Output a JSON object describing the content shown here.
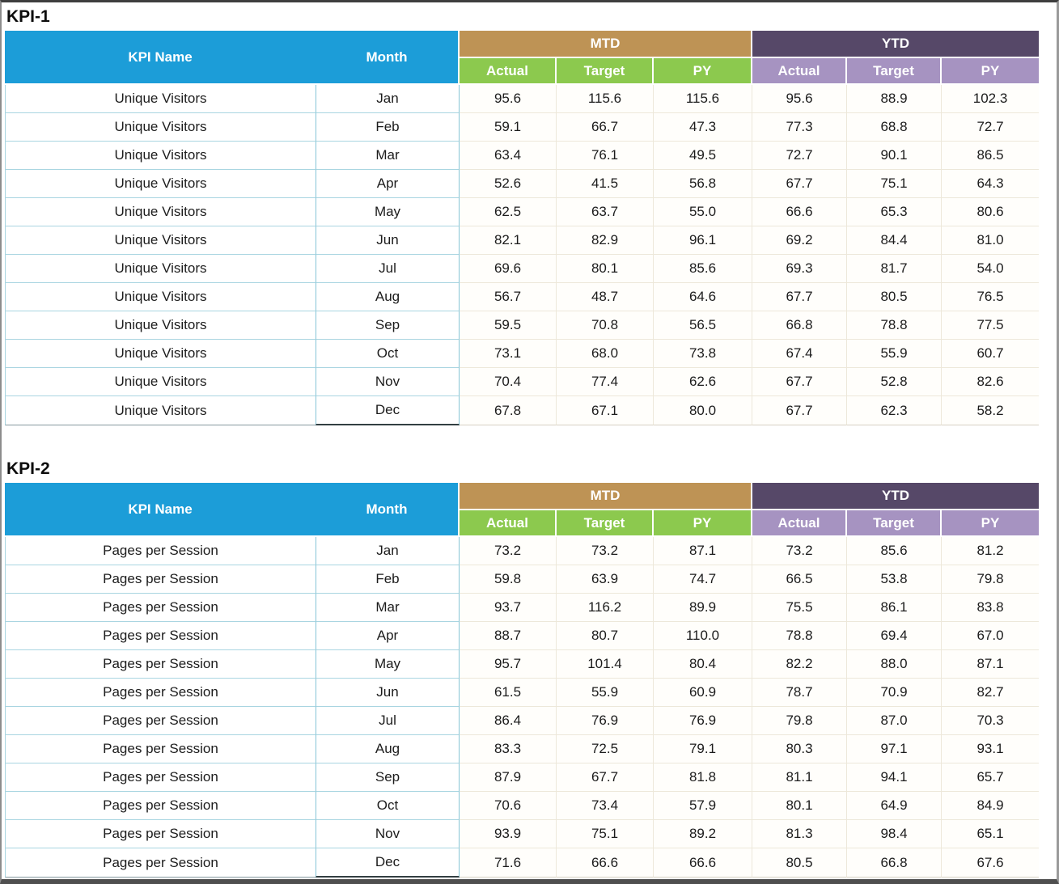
{
  "colors": {
    "header_blue": "#1C9DD8",
    "mtd_group_gold": "#BE9355",
    "mtd_subheader_green": "#8CC94E",
    "ytd_group_purple": "#564868",
    "ytd_subheader_lavender": "#A693C1",
    "name_month_gridline_teal": "#86C5D7",
    "numeric_gridline_cream": "#EDE8DA",
    "header_text": "#FFFFFF",
    "body_text": "#1C1C1C"
  },
  "tables": [
    {
      "title": "KPI-1",
      "kpi_name": "Unique Visitors",
      "columns": {
        "kpi_name": "KPI Name",
        "month": "Month",
        "mtd_group": "MTD",
        "ytd_group": "YTD",
        "sub": [
          "Actual",
          "Target",
          "PY"
        ]
      },
      "rows": [
        {
          "month": "Jan",
          "mtd": [
            "95.6",
            "115.6",
            "115.6"
          ],
          "ytd": [
            "95.6",
            "88.9",
            "102.3"
          ]
        },
        {
          "month": "Feb",
          "mtd": [
            "59.1",
            "66.7",
            "47.3"
          ],
          "ytd": [
            "77.3",
            "68.8",
            "72.7"
          ]
        },
        {
          "month": "Mar",
          "mtd": [
            "63.4",
            "76.1",
            "49.5"
          ],
          "ytd": [
            "72.7",
            "90.1",
            "86.5"
          ]
        },
        {
          "month": "Apr",
          "mtd": [
            "52.6",
            "41.5",
            "56.8"
          ],
          "ytd": [
            "67.7",
            "75.1",
            "64.3"
          ]
        },
        {
          "month": "May",
          "mtd": [
            "62.5",
            "63.7",
            "55.0"
          ],
          "ytd": [
            "66.6",
            "65.3",
            "80.6"
          ]
        },
        {
          "month": "Jun",
          "mtd": [
            "82.1",
            "82.9",
            "96.1"
          ],
          "ytd": [
            "69.2",
            "84.4",
            "81.0"
          ]
        },
        {
          "month": "Jul",
          "mtd": [
            "69.6",
            "80.1",
            "85.6"
          ],
          "ytd": [
            "69.3",
            "81.7",
            "54.0"
          ]
        },
        {
          "month": "Aug",
          "mtd": [
            "56.7",
            "48.7",
            "64.6"
          ],
          "ytd": [
            "67.7",
            "80.5",
            "76.5"
          ]
        },
        {
          "month": "Sep",
          "mtd": [
            "59.5",
            "70.8",
            "56.5"
          ],
          "ytd": [
            "66.8",
            "78.8",
            "77.5"
          ]
        },
        {
          "month": "Oct",
          "mtd": [
            "73.1",
            "68.0",
            "73.8"
          ],
          "ytd": [
            "67.4",
            "55.9",
            "60.7"
          ]
        },
        {
          "month": "Nov",
          "mtd": [
            "70.4",
            "77.4",
            "62.6"
          ],
          "ytd": [
            "67.7",
            "52.8",
            "82.6"
          ]
        },
        {
          "month": "Dec",
          "mtd": [
            "67.8",
            "67.1",
            "80.0"
          ],
          "ytd": [
            "67.7",
            "62.3",
            "58.2"
          ]
        }
      ]
    },
    {
      "title": "KPI-2",
      "kpi_name": "Pages per Session",
      "columns": {
        "kpi_name": "KPI Name",
        "month": "Month",
        "mtd_group": "MTD",
        "ytd_group": "YTD",
        "sub": [
          "Actual",
          "Target",
          "PY"
        ]
      },
      "rows": [
        {
          "month": "Jan",
          "mtd": [
            "73.2",
            "73.2",
            "87.1"
          ],
          "ytd": [
            "73.2",
            "85.6",
            "81.2"
          ]
        },
        {
          "month": "Feb",
          "mtd": [
            "59.8",
            "63.9",
            "74.7"
          ],
          "ytd": [
            "66.5",
            "53.8",
            "79.8"
          ]
        },
        {
          "month": "Mar",
          "mtd": [
            "93.7",
            "116.2",
            "89.9"
          ],
          "ytd": [
            "75.5",
            "86.1",
            "83.8"
          ]
        },
        {
          "month": "Apr",
          "mtd": [
            "88.7",
            "80.7",
            "110.0"
          ],
          "ytd": [
            "78.8",
            "69.4",
            "67.0"
          ]
        },
        {
          "month": "May",
          "mtd": [
            "95.7",
            "101.4",
            "80.4"
          ],
          "ytd": [
            "82.2",
            "88.0",
            "87.1"
          ]
        },
        {
          "month": "Jun",
          "mtd": [
            "61.5",
            "55.9",
            "60.9"
          ],
          "ytd": [
            "78.7",
            "70.9",
            "82.7"
          ]
        },
        {
          "month": "Jul",
          "mtd": [
            "86.4",
            "76.9",
            "76.9"
          ],
          "ytd": [
            "79.8",
            "87.0",
            "70.3"
          ]
        },
        {
          "month": "Aug",
          "mtd": [
            "83.3",
            "72.5",
            "79.1"
          ],
          "ytd": [
            "80.3",
            "97.1",
            "93.1"
          ]
        },
        {
          "month": "Sep",
          "mtd": [
            "87.9",
            "67.7",
            "81.8"
          ],
          "ytd": [
            "81.1",
            "94.1",
            "65.7"
          ]
        },
        {
          "month": "Oct",
          "mtd": [
            "70.6",
            "73.4",
            "57.9"
          ],
          "ytd": [
            "80.1",
            "64.9",
            "84.9"
          ]
        },
        {
          "month": "Nov",
          "mtd": [
            "93.9",
            "75.1",
            "89.2"
          ],
          "ytd": [
            "81.3",
            "98.4",
            "65.1"
          ]
        },
        {
          "month": "Dec",
          "mtd": [
            "71.6",
            "66.6",
            "66.6"
          ],
          "ytd": [
            "80.5",
            "66.8",
            "67.6"
          ]
        }
      ]
    }
  ]
}
